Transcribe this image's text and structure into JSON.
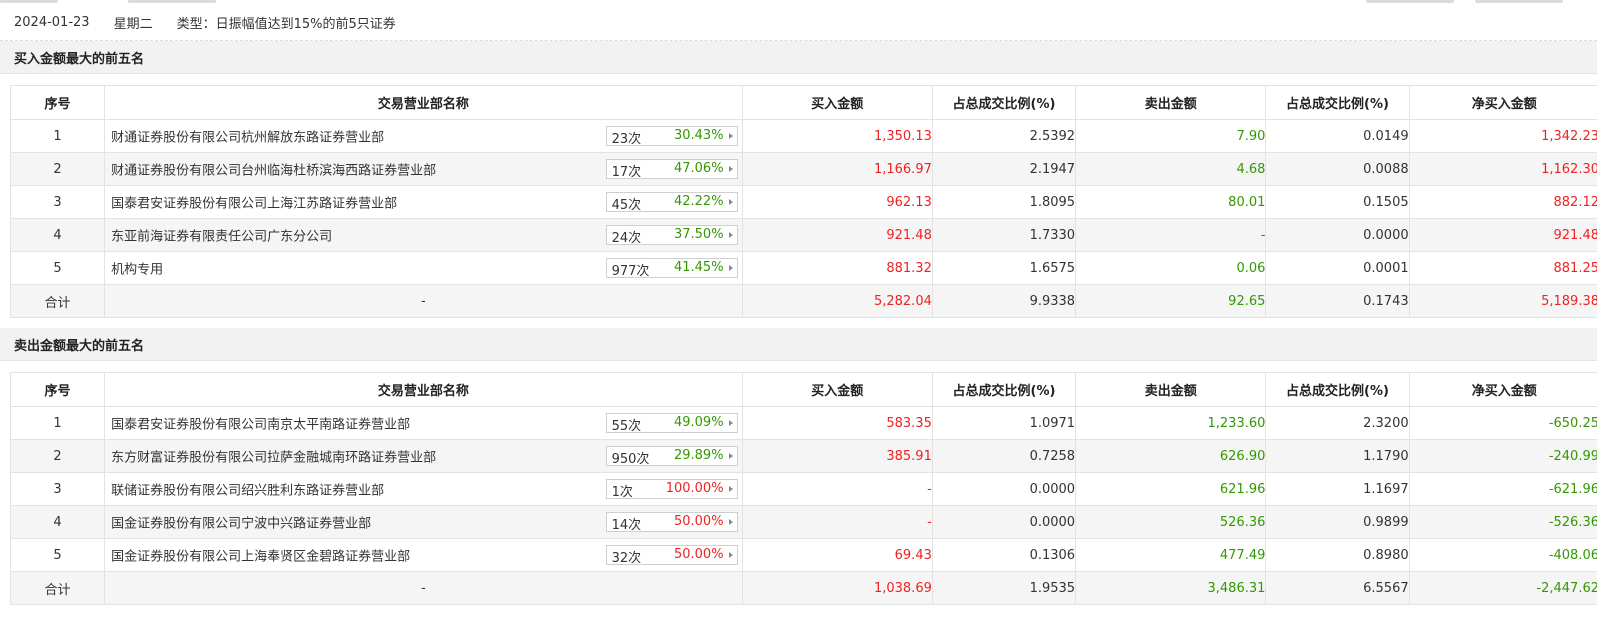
{
  "header": {
    "date": "2024-01-23",
    "weekday": "星期二",
    "type_text": "类型：日振幅值达到15%的前5只证券"
  },
  "columns": [
    "序号",
    "交易营业部名称",
    "买入金额",
    "占总成交比例(%)",
    "卖出金额",
    "占总成交比例(%)",
    "净买入金额"
  ],
  "colors": {
    "up": "#ee2222",
    "down": "#339900"
  },
  "icons": {
    "stat_arrow": "caret-right-icon"
  },
  "buy_section": {
    "title": "买入金额最大的前五名",
    "rows": [
      {
        "idx": "1",
        "name": "财通证券股份有限公司杭州解放东路证券营业部",
        "count": "23次",
        "rate": "30.43%",
        "rate_color": "green",
        "buy": "1,350.13",
        "buy_pct": "2.5392",
        "sell": "7.90",
        "sell_pct": "0.0149",
        "net": "1,342.23",
        "net_color": "red"
      },
      {
        "idx": "2",
        "name": "财通证券股份有限公司台州临海杜桥滨海西路证券营业部",
        "count": "17次",
        "rate": "47.06%",
        "rate_color": "green",
        "buy": "1,166.97",
        "buy_pct": "2.1947",
        "sell": "4.68",
        "sell_pct": "0.0088",
        "net": "1,162.30",
        "net_color": "red"
      },
      {
        "idx": "3",
        "name": "国泰君安证券股份有限公司上海江苏路证券营业部",
        "count": "45次",
        "rate": "42.22%",
        "rate_color": "green",
        "buy": "962.13",
        "buy_pct": "1.8095",
        "sell": "80.01",
        "sell_pct": "0.1505",
        "net": "882.12",
        "net_color": "red"
      },
      {
        "idx": "4",
        "name": "东亚前海证券有限责任公司广东分公司",
        "count": "24次",
        "rate": "37.50%",
        "rate_color": "green",
        "buy": "921.48",
        "buy_pct": "1.7330",
        "sell": "-",
        "sell_pct": "0.0000",
        "net": "921.48",
        "net_color": "red"
      },
      {
        "idx": "5",
        "name": "机构专用",
        "count": "977次",
        "rate": "41.45%",
        "rate_color": "green",
        "buy": "881.32",
        "buy_pct": "1.6575",
        "sell": "0.06",
        "sell_pct": "0.0001",
        "net": "881.25",
        "net_color": "red"
      }
    ],
    "total": {
      "label": "合计",
      "name": "-",
      "buy": "5,282.04",
      "buy_pct": "9.9338",
      "sell": "92.65",
      "sell_pct": "0.1743",
      "net": "5,189.38",
      "net_color": "red"
    }
  },
  "sell_section": {
    "title": "卖出金额最大的前五名",
    "rows": [
      {
        "idx": "1",
        "name": "国泰君安证券股份有限公司南京太平南路证券营业部",
        "count": "55次",
        "rate": "49.09%",
        "rate_color": "green",
        "buy": "583.35",
        "buy_pct": "1.0971",
        "sell": "1,233.60",
        "sell_pct": "2.3200",
        "net": "-650.25",
        "net_color": "green"
      },
      {
        "idx": "2",
        "name": "东方财富证券股份有限公司拉萨金融城南环路证券营业部",
        "count": "950次",
        "rate": "29.89%",
        "rate_color": "green",
        "buy": "385.91",
        "buy_pct": "0.7258",
        "sell": "626.90",
        "sell_pct": "1.1790",
        "net": "-240.99",
        "net_color": "green"
      },
      {
        "idx": "3",
        "name": "联储证券股份有限公司绍兴胜利东路证券营业部",
        "count": "1次",
        "rate": "100.00%",
        "rate_color": "red",
        "buy": "-",
        "buy_pct": "0.0000",
        "sell": "621.96",
        "sell_pct": "1.1697",
        "net": "-621.96",
        "net_color": "green"
      },
      {
        "idx": "4",
        "name": "国金证券股份有限公司宁波中兴路证券营业部",
        "count": "14次",
        "rate": "50.00%",
        "rate_color": "red",
        "buy": "-",
        "buy_pct": "0.0000",
        "sell": "526.36",
        "sell_pct": "0.9899",
        "net": "-526.36",
        "net_color": "green"
      },
      {
        "idx": "5",
        "name": "国金证券股份有限公司上海奉贤区金碧路证券营业部",
        "count": "32次",
        "rate": "50.00%",
        "rate_color": "red",
        "buy": "69.43",
        "buy_pct": "0.1306",
        "sell": "477.49",
        "sell_pct": "0.8980",
        "net": "-408.06",
        "net_color": "green"
      }
    ],
    "total": {
      "label": "合计",
      "name": "-",
      "buy": "1,038.69",
      "buy_pct": "1.9535",
      "sell": "3,486.31",
      "sell_pct": "6.5567",
      "net": "-2,447.62",
      "net_color": "green"
    }
  }
}
